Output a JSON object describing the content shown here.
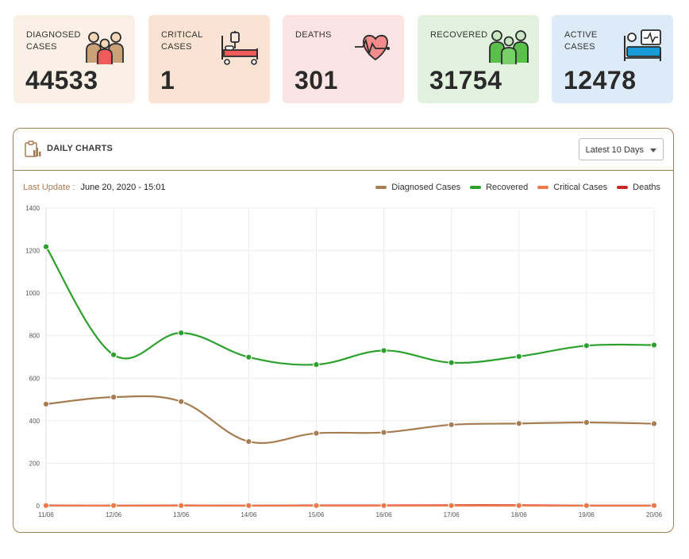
{
  "cards": [
    {
      "label": "Diagnosed Cases",
      "value": "44533",
      "bg": "#fbf0e6",
      "icon": "family-icon"
    },
    {
      "label": "Critical Cases",
      "value": "1",
      "bg": "#fae3d2",
      "icon": "hospital-bed-icon"
    },
    {
      "label": "Deaths",
      "value": "301",
      "bg": "#fde4e4",
      "icon": "heartbeat-icon"
    },
    {
      "label": "Recovered",
      "value": "31754",
      "bg": "#e3f2df",
      "icon": "healthy-people-icon"
    },
    {
      "label": "Active Cases",
      "value": "12478",
      "bg": "#dcebf7",
      "icon": "patient-monitor-icon"
    }
  ],
  "panel": {
    "title": "DAILY CHARTS",
    "dropdown": "Latest 10 Days",
    "last_update_label": "Last Update :",
    "last_update_value": "June 20, 2020 - 15:01"
  },
  "chart_data": {
    "type": "line",
    "title": "",
    "xlabel": "",
    "ylabel": "",
    "ylim": [
      0,
      1400
    ],
    "yticks": [
      0,
      200,
      400,
      600,
      800,
      1000,
      1200,
      1400
    ],
    "categories": [
      "11/06",
      "12/06",
      "13/06",
      "14/06",
      "15/06",
      "16/06",
      "17/06",
      "18/06",
      "19/06",
      "20/06"
    ],
    "legend_position": "top-right",
    "series": [
      {
        "name": "Diagnosed Cases",
        "color": "#a67c52",
        "values": [
          478,
          511,
          490,
          302,
          341,
          345,
          381,
          387,
          392,
          386
        ]
      },
      {
        "name": "Recovered",
        "color": "#2ca02c",
        "values": [
          1218,
          710,
          813,
          699,
          664,
          730,
          673,
          702,
          753,
          756
        ]
      },
      {
        "name": "Critical Cases",
        "color": "#ee7a4a",
        "values": [
          1,
          1,
          1,
          1,
          1,
          1,
          1,
          1,
          1,
          1
        ]
      },
      {
        "name": "Deaths",
        "color": "#c62828",
        "values": [
          2,
          1,
          2,
          1,
          2,
          2,
          3,
          3,
          1,
          1
        ]
      }
    ]
  }
}
